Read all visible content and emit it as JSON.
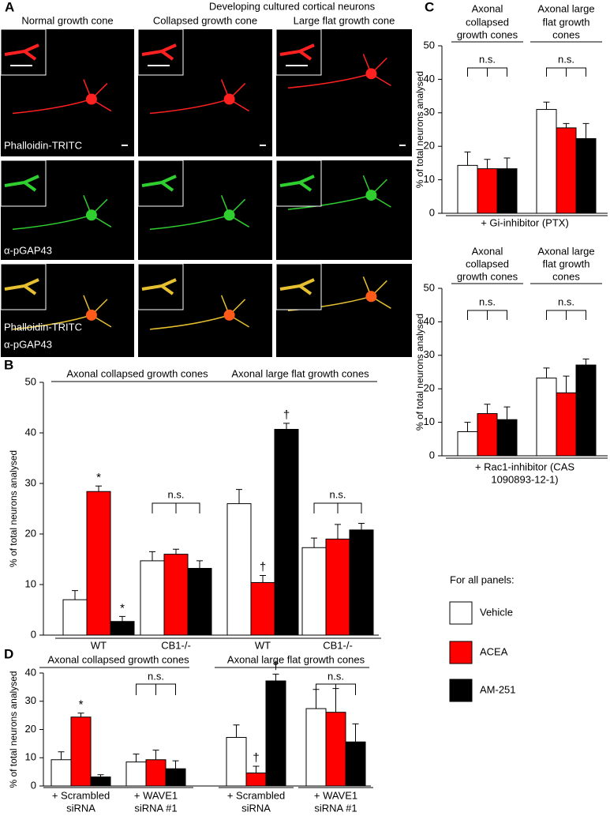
{
  "panel_a": {
    "label": "A",
    "title": "Developing cultured cortical neurons",
    "columns": [
      "Normal growth cone",
      "Collapsed growth cone",
      "Large flat growth cone"
    ],
    "stain_labels": [
      "Phalloidin-TRITC",
      "α-pGAP43",
      "Phalloidin-TRITC",
      "α-pGAP43"
    ]
  },
  "chart_data": [
    {
      "type": "bar",
      "panel": "B",
      "y_label": "% of total neurons analysed",
      "ylim": [
        0,
        50
      ],
      "yticks": [
        0,
        10,
        20,
        30,
        40,
        50
      ],
      "group_labels": [
        "Axonal collapsed growth cones",
        "Axonal large flat growth cones"
      ],
      "categories": [
        [
          "WT"
        ],
        [
          "CB1-/-"
        ],
        [
          "WT"
        ],
        [
          "CB1-/-"
        ]
      ],
      "brackets": [
        null,
        "n.s.",
        null,
        "n.s."
      ],
      "series": [
        {
          "name": "Vehicle",
          "color": "#ffffff",
          "values": [
            7,
            14.7,
            26,
            17.3
          ],
          "errors": [
            1.8,
            1.8,
            2.8,
            1.9
          ]
        },
        {
          "name": "ACEA",
          "color": "#ff0000",
          "values": [
            28.4,
            16,
            10.4,
            19
          ],
          "errors": [
            1.1,
            1,
            1.4,
            2.9
          ],
          "annotations": [
            "*",
            null,
            "†",
            null
          ]
        },
        {
          "name": "AM-251",
          "color": "#000000",
          "values": [
            2.7,
            13.2,
            40.7,
            20.8
          ],
          "errors": [
            1,
            1.5,
            1.2,
            1.3
          ],
          "annotations": [
            "*",
            null,
            "†",
            null
          ]
        }
      ]
    },
    {
      "type": "bar",
      "panel": "C",
      "y_label": "% of total neurons analysed",
      "ylim": [
        0,
        50
      ],
      "yticks": [
        0,
        10,
        20,
        30,
        40,
        50
      ],
      "categories": [
        [
          "Axonal",
          "collapsed",
          "growth cones"
        ],
        [
          "Axonal large",
          "flat growth",
          "cones"
        ]
      ],
      "x_label": [
        "+ Gi-inhibitor (PTX)"
      ],
      "brackets": [
        "n.s.",
        "n.s."
      ],
      "series": [
        {
          "name": "Vehicle",
          "color": "#ffffff",
          "values": [
            14.3,
            31
          ],
          "errors": [
            4,
            2.2
          ]
        },
        {
          "name": "ACEA",
          "color": "#ff0000",
          "values": [
            13.3,
            25.5
          ],
          "errors": [
            2.8,
            1.3
          ]
        },
        {
          "name": "AM-251",
          "color": "#000000",
          "values": [
            13.3,
            22.3
          ],
          "errors": [
            3.2,
            4.5
          ]
        }
      ]
    },
    {
      "type": "bar",
      "y_label": "% of total neurons analysed",
      "ylim": [
        0,
        50
      ],
      "yticks": [
        0,
        10,
        20,
        30,
        40,
        50
      ],
      "categories": [
        [
          "Axonal",
          "collapsed",
          "growth cones"
        ],
        [
          "Axonal large",
          "flat growth",
          "cones"
        ]
      ],
      "x_label": [
        "+ Rac1-inhibitor (CAS",
        "1090893-12-1)"
      ],
      "brackets": [
        "n.s.",
        "n.s."
      ],
      "series": [
        {
          "name": "Vehicle",
          "color": "#ffffff",
          "values": [
            7.2,
            23.2
          ],
          "errors": [
            2.8,
            3
          ]
        },
        {
          "name": "ACEA",
          "color": "#ff0000",
          "values": [
            12.6,
            18.8
          ],
          "errors": [
            2.8,
            5
          ]
        },
        {
          "name": "AM-251",
          "color": "#000000",
          "values": [
            10.8,
            27.1
          ],
          "errors": [
            3.8,
            1.8
          ]
        }
      ]
    },
    {
      "type": "bar",
      "panel": "D",
      "y_label": "% of total neurons analysed",
      "ylim": [
        0,
        40
      ],
      "yticks": [
        0,
        10,
        20,
        30,
        40
      ],
      "group_labels": [
        "Axonal collapsed growth cones",
        "Axonal large flat growth cones"
      ],
      "categories": [
        [
          "+ Scrambled",
          "siRNA"
        ],
        [
          "+ WAVE1",
          "siRNA #1"
        ],
        [
          "+ Scrambled",
          "siRNA"
        ],
        [
          "+ WAVE1",
          "siRNA #1"
        ]
      ],
      "brackets": [
        null,
        "n.s.",
        null,
        "n.s."
      ],
      "series": [
        {
          "name": "Vehicle",
          "color": "#ffffff",
          "values": [
            9.3,
            8.5,
            17.2,
            27.4
          ],
          "errors": [
            2.8,
            2.8,
            4.4,
            6.8
          ]
        },
        {
          "name": "ACEA",
          "color": "#ff0000",
          "values": [
            24.4,
            9.3,
            4.6,
            26.1
          ],
          "errors": [
            1.4,
            3.4,
            2.4,
            8.4
          ],
          "annotations": [
            "*",
            null,
            "†",
            null
          ]
        },
        {
          "name": "AM-251",
          "color": "#000000",
          "values": [
            3.2,
            6.1,
            37.2,
            15.6
          ],
          "errors": [
            0.8,
            2.8,
            2.4,
            6.4
          ],
          "annotations": [
            null,
            null,
            "†",
            null
          ]
        }
      ]
    }
  ],
  "legend_title": "For all panels:"
}
